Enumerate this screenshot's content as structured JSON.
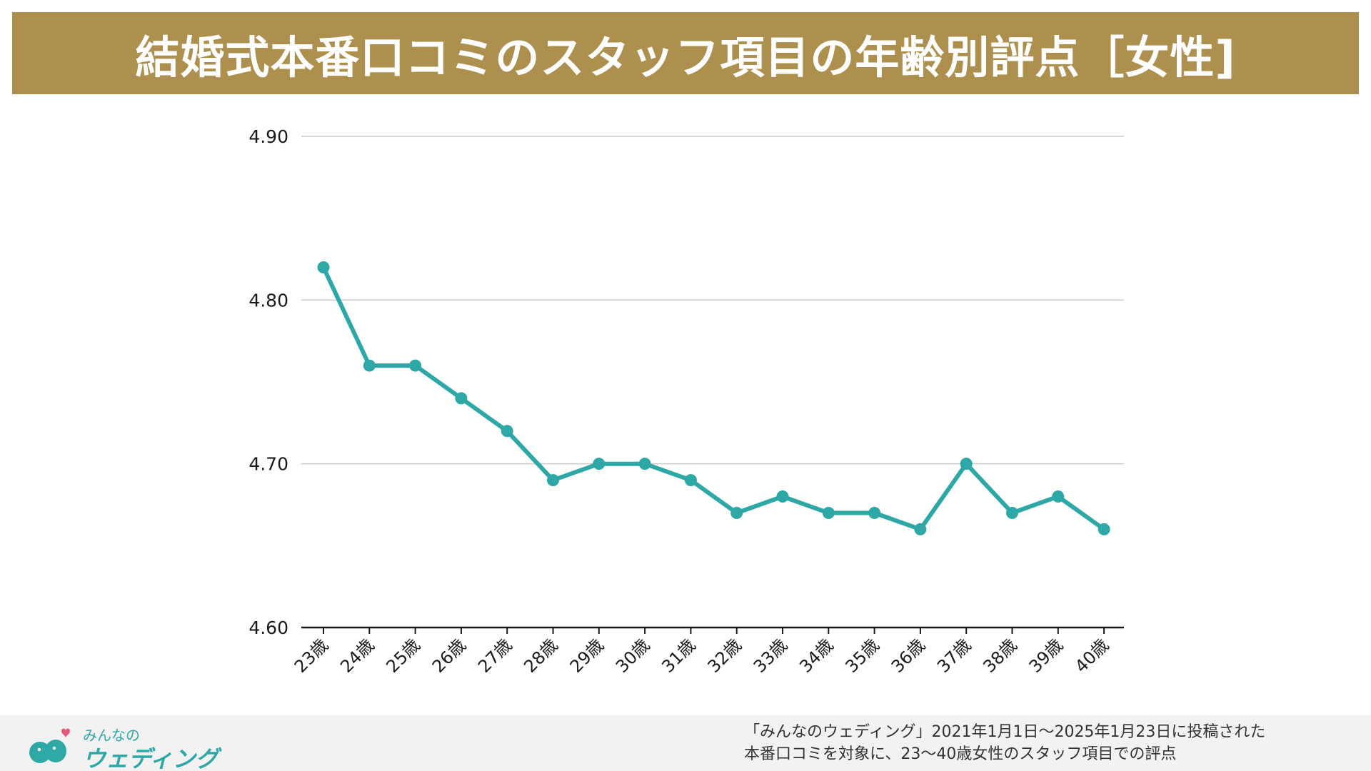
{
  "title": "結婚式本番口コミのスタッフ項目の年齢別評点［女性]",
  "colors": {
    "title_bar": "#ad904e",
    "title_text": "#ffffff",
    "series_line": "#2ea8a6",
    "grid": "#cccccc",
    "axis": "#1a1a1a",
    "footer_bg": "#f2f2f2",
    "logo": "#2ea8a6",
    "logo_heart": "#e8577a"
  },
  "logo": {
    "small_text": "みんなの",
    "large_text": "ウェディング",
    "icon": "two-birds-heart-icon"
  },
  "source_note": {
    "line1": "「みんなのウェディング」2021年1月1日〜2025年1月23日に投稿された",
    "line2": "本番口コミを対象に、23〜40歳女性のスタッフ項目での評点"
  },
  "chart_data": {
    "type": "line",
    "title": "",
    "xlabel": "",
    "ylabel": "",
    "categories": [
      "23歳",
      "24歳",
      "25歳",
      "26歳",
      "27歳",
      "28歳",
      "29歳",
      "30歳",
      "31歳",
      "32歳",
      "33歳",
      "34歳",
      "35歳",
      "36歳",
      "37歳",
      "38歳",
      "39歳",
      "40歳"
    ],
    "series": [
      {
        "values": [
          4.82,
          4.76,
          4.76,
          4.74,
          4.72,
          4.69,
          4.7,
          4.7,
          4.69,
          4.67,
          4.68,
          4.67,
          4.67,
          4.66,
          4.7,
          4.67,
          4.68,
          4.66
        ]
      }
    ],
    "ylim": [
      4.6,
      4.9
    ],
    "yticks": [
      "4.60",
      "4.70",
      "4.80",
      "4.90"
    ],
    "grid": true,
    "legend": "none"
  }
}
